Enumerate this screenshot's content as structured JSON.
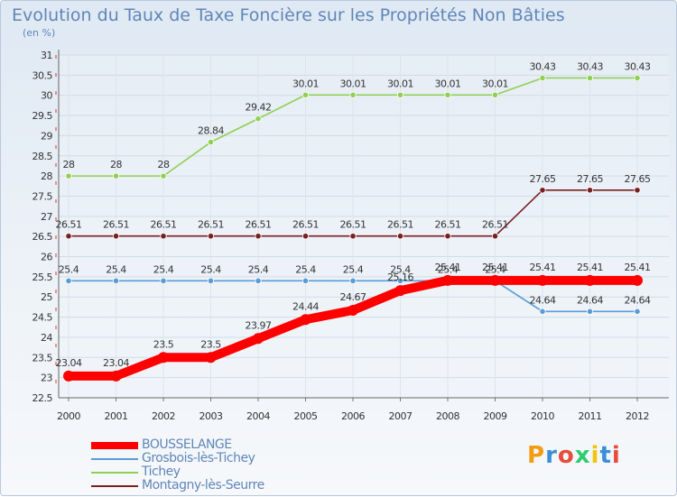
{
  "chart_data": {
    "type": "line",
    "title": "Evolution du Taux de Taxe Foncière sur les Propriétés Non Bâties",
    "unit_label": "(en %)",
    "x": [
      "2000",
      "2001",
      "2002",
      "2003",
      "2004",
      "2005",
      "2006",
      "2007",
      "2008",
      "2009",
      "2010",
      "2011",
      "2012"
    ],
    "ylim": [
      22.5,
      31
    ],
    "yticks": [
      "22.5",
      "23",
      "23.5",
      "24",
      "24.5",
      "25",
      "25.5",
      "26",
      "26.5",
      "27",
      "27.5",
      "28",
      "28.5",
      "29",
      "29.5",
      "30",
      "30.5",
      "31"
    ],
    "grid": true,
    "legend_position": "bottom-left",
    "series": [
      {
        "name": "BOUSSELANGE",
        "color": "#ff0000",
        "values": [
          23.04,
          23.04,
          23.5,
          23.5,
          23.97,
          24.44,
          24.67,
          25.16,
          25.41,
          25.41,
          25.41,
          25.41,
          25.41
        ],
        "labels": [
          "23.04",
          "23.04",
          "23.5",
          "23.5",
          "23.97",
          "24.44",
          "24.67",
          "25.16",
          "25.41",
          "25.41",
          "25.41",
          "25.41",
          "25.41"
        ]
      },
      {
        "name": "Grosbois-lès-Tichey",
        "color": "#5b9bd5",
        "values": [
          25.4,
          25.4,
          25.4,
          25.4,
          25.4,
          25.4,
          25.4,
          25.4,
          25.4,
          25.4,
          24.64,
          24.64,
          24.64
        ],
        "labels": [
          "25.4",
          "25.4",
          "25.4",
          "25.4",
          "25.4",
          "25.4",
          "25.4",
          "25.4",
          "25.4",
          "25.4",
          "24.64",
          "24.64",
          "24.64"
        ]
      },
      {
        "name": "Tichey",
        "color": "#90d050",
        "values": [
          28,
          28,
          28,
          28.84,
          29.42,
          30.01,
          30.01,
          30.01,
          30.01,
          30.01,
          30.43,
          30.43,
          30.43
        ],
        "labels": [
          "28",
          "28",
          "28",
          "28.84",
          "29.42",
          "30.01",
          "30.01",
          "30.01",
          "30.01",
          "30.01",
          "30.43",
          "30.43",
          "30.43"
        ]
      },
      {
        "name": "Montagny-lès-Seurre",
        "color": "#7a2020",
        "values": [
          26.51,
          26.51,
          26.51,
          26.51,
          26.51,
          26.51,
          26.51,
          26.51,
          26.51,
          26.51,
          27.65,
          27.65,
          27.65
        ],
        "labels": [
          "26.51",
          "26.51",
          "26.51",
          "26.51",
          "26.51",
          "26.51",
          "26.51",
          "26.51",
          "26.51",
          "26.51",
          "27.65",
          "27.65",
          "27.65"
        ]
      }
    ]
  },
  "logo": {
    "text": "Proxiti",
    "colors": [
      "#f39c12",
      "#3b8fd6",
      "#e74c3c",
      "#2ecc71",
      "#f1c40f",
      "#3b8fd6",
      "#e74c3c"
    ]
  }
}
